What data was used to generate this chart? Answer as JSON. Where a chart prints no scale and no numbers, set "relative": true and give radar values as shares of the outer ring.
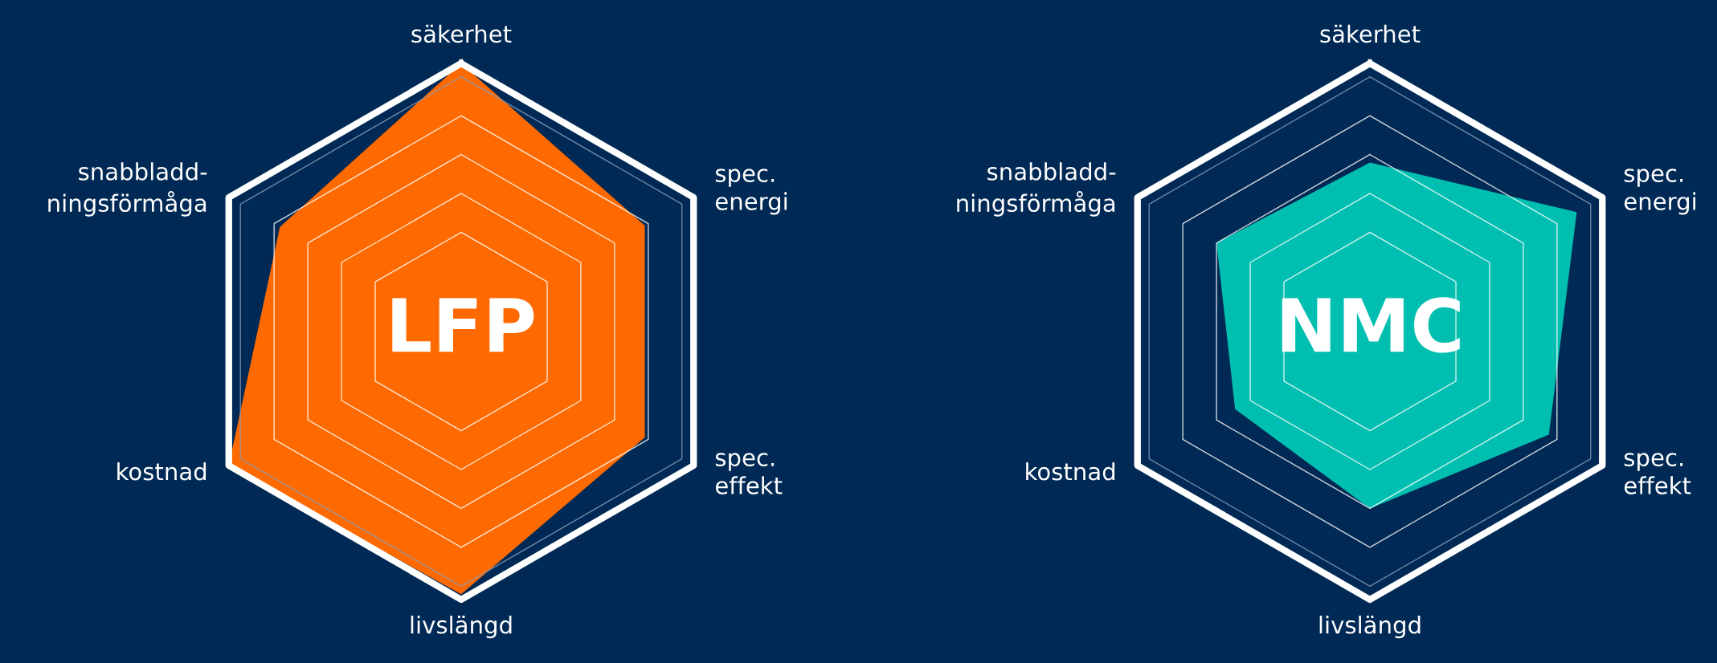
{
  "chart_data": [
    {
      "type": "radar",
      "title": "LFP",
      "categories": [
        "säkerhet",
        "spec.\nenergi",
        "spec.\neffekt",
        "livslängd",
        "kostnad",
        "snabbladd-\nningsförmåga"
      ],
      "relative": true,
      "grid": true,
      "series": [
        {
          "color": "#ff6a00",
          "values": [
            1.0,
            0.79,
            0.79,
            0.98,
            1.0,
            0.78
          ]
        }
      ]
    },
    {
      "type": "radar",
      "title": "NMC",
      "categories": [
        "säkerhet",
        "spec.\nenergi",
        "spec.\neffekt",
        "livslängd",
        "kostnad",
        "snabbladd-\nningsförmåga"
      ],
      "relative": true,
      "grid": true,
      "series": [
        {
          "color": "#00bfb0",
          "values": [
            0.63,
            0.89,
            0.77,
            0.66,
            0.58,
            0.66
          ]
        }
      ]
    }
  ]
}
